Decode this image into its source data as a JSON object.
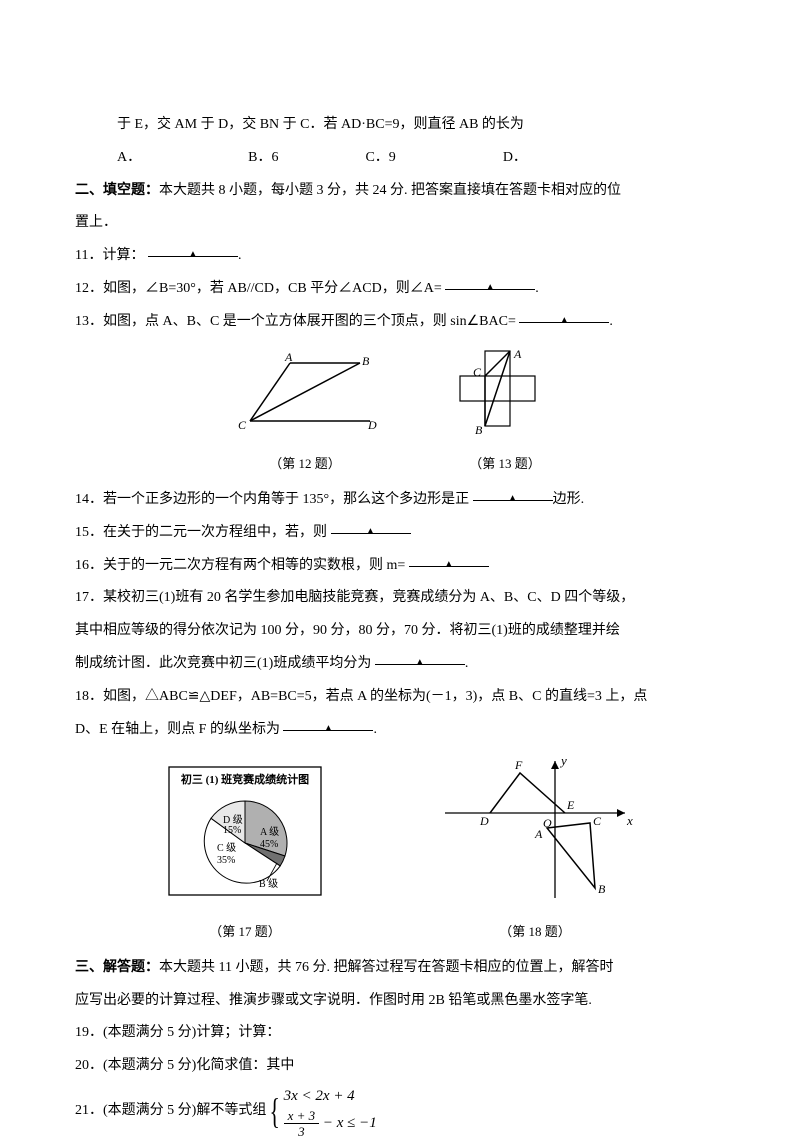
{
  "q10_tail": {
    "frag1": "于 E，交 AM 于 D，交 BN 于 C．若 AD·BC=9，则直径 AB 的长为",
    "optA": "A．",
    "optB": "B．6",
    "optC": "C．9",
    "optD": "D．",
    "gapA": 100,
    "gapB": 80,
    "gapC": 100
  },
  "sec2": {
    "title_bold": "二、填空题：",
    "title_rest": "本大题共 8 小题，每小题 3 分，共 24 分. 把答案直接填在答题卡相对应的位",
    "title_line2": "置上．"
  },
  "q11": {
    "text": "11．计算：",
    "blank_w": 90
  },
  "q12": {
    "pre": "12．如图，∠B=30°，若 AB//CD，CB 平分∠ACD，则∠A= ",
    "blank_w": 90,
    "post": "."
  },
  "q13": {
    "pre": "13．如图，点 A、B、C 是一个立方体展开图的三个顶点，则 sin∠BAC=",
    "blank_w": 90,
    "post": "."
  },
  "fig12": {
    "caption": "（第 12 题）",
    "labels": {
      "A": "A",
      "B": "B",
      "C": "C",
      "D": "D"
    }
  },
  "fig13": {
    "caption": "（第 13 题）",
    "labels": {
      "A": "A",
      "B": "B",
      "C": "C"
    }
  },
  "q14": {
    "pre": "14．若一个正多边形的一个内角等于 135°，那么这个多边形是正",
    "blank_w": 80,
    "post": "边形."
  },
  "q15": {
    "pre": "15．在关于的二元一次方程组中，若，则",
    "blank_w": 80
  },
  "q16": {
    "pre": "16．关于的一元二次方程有两个相等的实数根，则 m=",
    "blank_w": 80
  },
  "q17": {
    "line1": "17．某校初三(1)班有 20 名学生参加电脑技能竞赛，竞赛成绩分为 A、B、C、D 四个等级，",
    "line2": "其中相应等级的得分依次记为 100 分，90 分，80 分，70 分．将初三(1)班的成绩整理并绘",
    "line3_pre": "制成统计图．此次竞赛中初三(1)班成绩平均分为",
    "blank_w": 90,
    "line3_post": "."
  },
  "q18": {
    "line1": "18．如图，△ABC≌△DEF，AB=BC=5，若点 A 的坐标为(－1，3)，点 B、C 的直线=3 上，点",
    "line2_pre": "D、E 在轴上，则点 F 的纵坐标为",
    "blank_w": 90,
    "line2_post": "."
  },
  "fig17": {
    "caption": "（第 17 题）",
    "title": "初三 (1) 班竞赛成绩统计图",
    "slices": {
      "A": {
        "label": "A 级",
        "pct": "45%",
        "color": "#b0b0b0"
      },
      "B": {
        "label": "B 级",
        "pct": "",
        "color": "#707070"
      },
      "C": {
        "label": "C 级",
        "pct": "35%",
        "color": "#ffffff"
      },
      "D": {
        "label": "D 级",
        "pct": "15%",
        "color": "#e8e8e8"
      }
    }
  },
  "fig18": {
    "caption": "（第 18 题）",
    "labels": {
      "x": "x",
      "y": "y",
      "O": "O",
      "A": "A",
      "B": "B",
      "C": "C",
      "D": "D",
      "E": "E",
      "F": "F"
    }
  },
  "sec3": {
    "title_bold": "三、解答题：",
    "title_rest": "本大题共 11 小题，共 76 分. 把解答过程写在答题卡相应的位置上，解答时",
    "title_line2": "应写出必要的计算过程、推演步骤或文字说明．作图时用 2B 铅笔或黑色墨水签字笔."
  },
  "q19": "19．(本题满分 5 分)计算；计算：",
  "q20": "20．(本题满分 5 分)化简求值：其中",
  "q21": {
    "pre": "21．(本题满分 5 分)解不等式组",
    "row1_lhs": "3x",
    "row1_op": " < ",
    "row1_rhs": "2x + 4",
    "row2_num": "x + 3",
    "row2_den": "3",
    "row2_tail": " − x ≤ −1"
  }
}
